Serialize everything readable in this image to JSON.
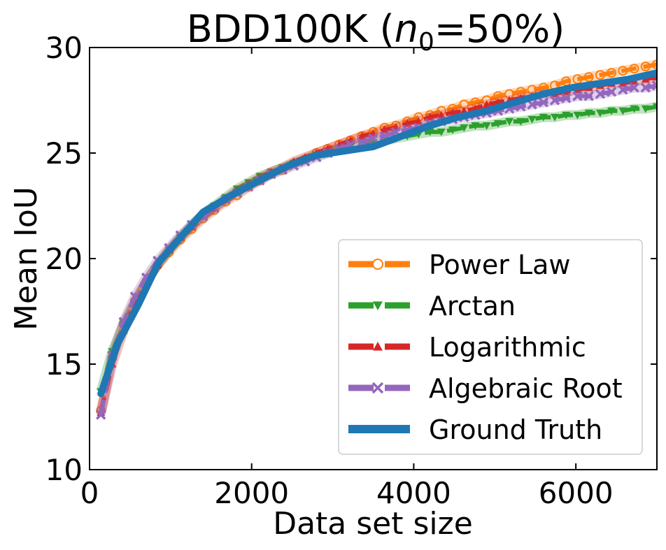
{
  "chart_data": {
    "type": "line",
    "title_main": "BDD100K (",
    "title_var": "n",
    "title_sub": "0",
    "title_rest": "=50%)",
    "xlabel": "Data set size",
    "ylabel": "Mean IoU",
    "xlim": [
      0,
      7000
    ],
    "ylim": [
      10,
      30
    ],
    "xticks": [
      0,
      2000,
      4000,
      6000
    ],
    "yticks": [
      10,
      15,
      20,
      25,
      30
    ],
    "legend_position": "lower-right",
    "series": [
      {
        "name": "Power Law",
        "color": "#ff7f0e",
        "marker": "circle",
        "dashed": true,
        "x": [
          140,
          280,
          420,
          560,
          700,
          840,
          980,
          1120,
          1260,
          1400,
          1540,
          1680,
          1820,
          1960,
          2100,
          2240,
          2380,
          2520,
          2660,
          2800,
          2940,
          3080,
          3220,
          3360,
          3500,
          3640,
          3780,
          3920,
          4060,
          4200,
          4340,
          4480,
          4620,
          4760,
          4900,
          5040,
          5180,
          5320,
          5460,
          5600,
          5740,
          5880,
          6020,
          6160,
          6300,
          6440,
          6580,
          6720,
          6860,
          7000
        ],
        "y": [
          12.8,
          15.3,
          16.9,
          18.0,
          18.9,
          19.7,
          20.3,
          20.9,
          21.4,
          21.9,
          22.3,
          22.7,
          23.0,
          23.4,
          23.7,
          24.0,
          24.2,
          24.5,
          24.7,
          25.0,
          25.2,
          25.4,
          25.6,
          25.8,
          26.0,
          26.2,
          26.3,
          26.5,
          26.7,
          26.8,
          27.0,
          27.1,
          27.3,
          27.4,
          27.5,
          27.7,
          27.8,
          27.9,
          28.0,
          28.1,
          28.2,
          28.4,
          28.5,
          28.6,
          28.7,
          28.8,
          28.9,
          29.0,
          29.1,
          29.2
        ]
      },
      {
        "name": "Arctan",
        "color": "#2ca02c",
        "marker": "triangle-down",
        "dashed": true,
        "x": [
          140,
          280,
          420,
          560,
          700,
          840,
          980,
          1120,
          1260,
          1400,
          1540,
          1680,
          1820,
          1960,
          2100,
          2240,
          2380,
          2520,
          2660,
          2800,
          2940,
          3080,
          3220,
          3360,
          3500,
          3640,
          3780,
          3920,
          4060,
          4200,
          4340,
          4480,
          4620,
          4760,
          4900,
          5040,
          5180,
          5320,
          5460,
          5600,
          5740,
          5880,
          6020,
          6160,
          6300,
          6440,
          6580,
          6720,
          6860,
          7000
        ],
        "y": [
          13.7,
          15.6,
          16.9,
          17.9,
          18.9,
          19.7,
          20.4,
          21.0,
          21.6,
          22.1,
          22.5,
          22.9,
          23.3,
          23.6,
          23.9,
          24.1,
          24.3,
          24.5,
          24.7,
          24.9,
          25.0,
          25.2,
          25.3,
          25.4,
          25.5,
          25.6,
          25.7,
          25.8,
          25.9,
          26.0,
          26.0,
          26.1,
          26.2,
          26.3,
          26.3,
          26.4,
          26.5,
          26.5,
          26.6,
          26.7,
          26.7,
          26.8,
          26.8,
          26.9,
          26.9,
          27.0,
          27.0,
          27.1,
          27.1,
          27.2
        ]
      },
      {
        "name": "Logarithmic",
        "color": "#d62728",
        "marker": "triangle-up",
        "dashed": true,
        "x": [
          140,
          280,
          420,
          560,
          700,
          840,
          980,
          1120,
          1260,
          1400,
          1540,
          1680,
          1820,
          1960,
          2100,
          2240,
          2380,
          2520,
          2660,
          2800,
          2940,
          3080,
          3220,
          3360,
          3500,
          3640,
          3780,
          3920,
          4060,
          4200,
          4340,
          4480,
          4620,
          4760,
          4900,
          5040,
          5180,
          5320,
          5460,
          5600,
          5740,
          5880,
          6020,
          6160,
          6300,
          6440,
          6580,
          6720,
          6860,
          7000
        ],
        "y": [
          12.7,
          15.0,
          16.6,
          17.9,
          18.9,
          19.7,
          20.4,
          21.0,
          21.5,
          22.0,
          22.4,
          22.8,
          23.2,
          23.5,
          23.8,
          24.1,
          24.3,
          24.6,
          24.8,
          25.0,
          25.2,
          25.4,
          25.6,
          25.8,
          25.9,
          26.1,
          26.2,
          26.4,
          26.5,
          26.7,
          26.8,
          26.9,
          27.0,
          27.1,
          27.3,
          27.4,
          27.5,
          27.6,
          27.7,
          27.8,
          27.8,
          27.9,
          28.0,
          28.1,
          28.2,
          28.3,
          28.3,
          28.4,
          28.5,
          28.6
        ]
      },
      {
        "name": "Algebraic Root",
        "color": "#9467bd",
        "marker": "x",
        "dashed": true,
        "x": [
          140,
          280,
          420,
          560,
          700,
          840,
          980,
          1120,
          1260,
          1400,
          1540,
          1680,
          1820,
          1960,
          2100,
          2240,
          2380,
          2520,
          2660,
          2800,
          2940,
          3080,
          3220,
          3360,
          3500,
          3640,
          3780,
          3920,
          4060,
          4200,
          4340,
          4480,
          4620,
          4760,
          4900,
          5040,
          5180,
          5320,
          5460,
          5600,
          5740,
          5880,
          6020,
          6160,
          6300,
          6440,
          6580,
          6720,
          6860,
          7000
        ],
        "y": [
          12.6,
          15.4,
          17.0,
          18.2,
          19.1,
          19.9,
          20.5,
          21.1,
          21.6,
          22.0,
          22.4,
          22.8,
          23.1,
          23.4,
          23.7,
          24.0,
          24.2,
          24.4,
          24.6,
          24.8,
          25.0,
          25.2,
          25.4,
          25.5,
          25.7,
          25.8,
          26.0,
          26.1,
          26.2,
          26.4,
          26.5,
          26.6,
          26.7,
          26.8,
          26.9,
          27.0,
          27.1,
          27.2,
          27.3,
          27.4,
          27.5,
          27.6,
          27.7,
          27.7,
          27.8,
          27.9,
          28.0,
          28.1,
          28.1,
          28.2
        ]
      },
      {
        "name": "Ground Truth",
        "color": "#1f77b4",
        "marker": "none",
        "dashed": false,
        "x": [
          140,
          350,
          600,
          850,
          1100,
          1400,
          1750,
          2100,
          2450,
          2800,
          3150,
          3500,
          3850,
          4200,
          4550,
          4900,
          5250,
          5600,
          5950,
          6300,
          6650,
          7000
        ],
        "y": [
          13.6,
          16.0,
          17.8,
          19.8,
          20.9,
          22.2,
          23.0,
          23.7,
          24.4,
          24.9,
          25.1,
          25.3,
          25.8,
          26.3,
          26.7,
          27.0,
          27.4,
          27.8,
          28.1,
          28.3,
          28.5,
          28.8
        ]
      }
    ]
  }
}
